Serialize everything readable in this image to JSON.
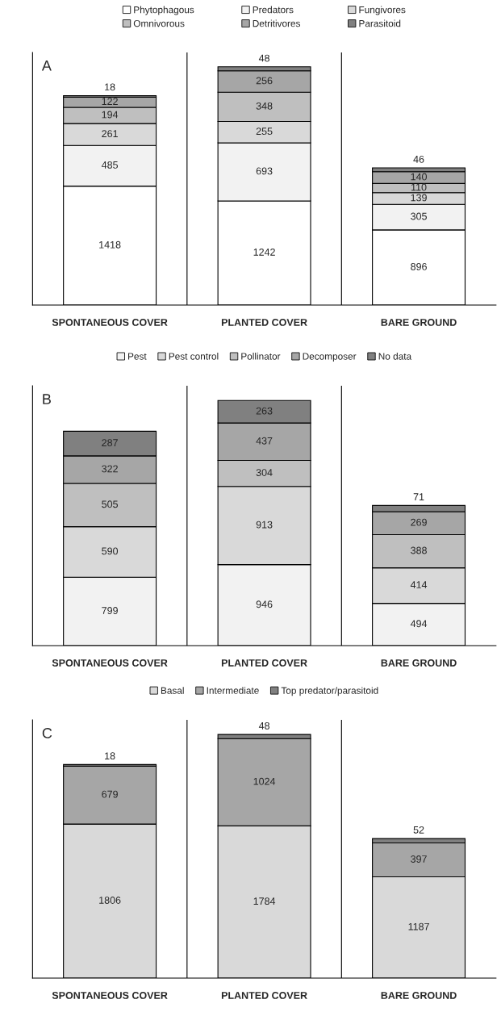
{
  "chart_data": [
    {
      "type": "bar",
      "stacked": true,
      "data_labels": true,
      "legend": "top",
      "grid": "x",
      "annotations": [
        "A"
      ],
      "categories": [
        "SPONTANEOUS COVER",
        "PLANTED COVER",
        "BARE GROUND"
      ],
      "series": [
        {
          "name": "Phytophagous",
          "color": "#ffffff",
          "values": [
            1418,
            1242,
            896
          ]
        },
        {
          "name": "Predators",
          "color": "#f2f2f2",
          "values": [
            485,
            693,
            305
          ]
        },
        {
          "name": "Fungivores",
          "color": "#d9d9d9",
          "values": [
            261,
            255,
            139
          ]
        },
        {
          "name": "Omnivorous",
          "color": "#bfbfbf",
          "values": [
            194,
            348,
            110
          ]
        },
        {
          "name": "Detritivores",
          "color": "#a6a6a6",
          "values": [
            122,
            256,
            140
          ]
        },
        {
          "name": "Parasitoid",
          "color": "#808080",
          "values": [
            18,
            48,
            46
          ]
        }
      ]
    },
    {
      "type": "bar",
      "stacked": true,
      "data_labels": true,
      "legend": "top",
      "grid": "x",
      "annotations": [
        "B"
      ],
      "categories": [
        "SPONTANEOUS COVER",
        "PLANTED COVER",
        "BARE GROUND"
      ],
      "series": [
        {
          "name": "Pest",
          "color": "#f2f2f2",
          "values": [
            799,
            946,
            494
          ]
        },
        {
          "name": "Pest control",
          "color": "#d9d9d9",
          "values": [
            590,
            913,
            414
          ]
        },
        {
          "name": "Pollinator",
          "color": "#bfbfbf",
          "values": [
            505,
            304,
            388
          ]
        },
        {
          "name": "Decomposer",
          "color": "#a6a6a6",
          "values": [
            322,
            437,
            269
          ]
        },
        {
          "name": "No data",
          "color": "#808080",
          "values": [
            287,
            263,
            71
          ]
        }
      ]
    },
    {
      "type": "bar",
      "stacked": true,
      "data_labels": true,
      "legend": "top",
      "grid": "x",
      "annotations": [
        "C"
      ],
      "categories": [
        "SPONTANEOUS COVER",
        "PLANTED COVER",
        "BARE GROUND"
      ],
      "series": [
        {
          "name": "Basal",
          "color": "#d9d9d9",
          "values": [
            1806,
            1784,
            1187
          ]
        },
        {
          "name": "Intermediate",
          "color": "#a6a6a6",
          "values": [
            679,
            1024,
            397
          ]
        },
        {
          "name": "Top predator/parasitoid",
          "color": "#808080",
          "values": [
            18,
            48,
            52
          ]
        }
      ]
    }
  ]
}
